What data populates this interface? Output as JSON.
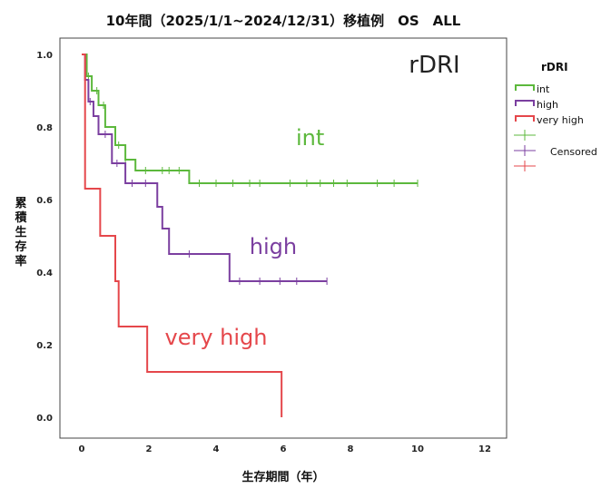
{
  "chart_data": {
    "type": "line",
    "title": "10年間（2025/1/1~2024/12/31）移植例　OS　ALL",
    "xlabel": "生存期間（年）",
    "ylabel": "累積生存率",
    "xlim": [
      0,
      12
    ],
    "ylim": [
      0,
      1.0
    ],
    "x_ticks": [
      "0",
      "2",
      "4",
      "6",
      "8",
      "10",
      "12"
    ],
    "y_ticks": [
      "0.0",
      "0.2",
      "0.4",
      "0.6",
      "0.8",
      "1.0"
    ],
    "x_tick_values": [
      0,
      2,
      4,
      6,
      8,
      10,
      12
    ],
    "y_tick_values": [
      0,
      0.2,
      0.4,
      0.6,
      0.8,
      1.0
    ],
    "grid": false,
    "legend": {
      "title": "rDRI",
      "placement": "top-right outside",
      "entries": [
        "int",
        "high",
        "very high"
      ],
      "censored_label": "Censored"
    },
    "series": [
      {
        "name": "int",
        "color": "#5cb83c",
        "steps": [
          [
            0,
            1.0
          ],
          [
            0.15,
            0.94
          ],
          [
            0.3,
            0.9
          ],
          [
            0.5,
            0.86
          ],
          [
            0.7,
            0.8
          ],
          [
            1.0,
            0.75
          ],
          [
            1.3,
            0.71
          ],
          [
            1.6,
            0.68
          ],
          [
            3.2,
            0.645
          ],
          [
            10.0,
            0.645
          ]
        ],
        "censored": [
          0.2,
          0.45,
          0.65,
          1.1,
          1.3,
          1.9,
          2.4,
          2.6,
          2.9,
          3.5,
          4.0,
          4.5,
          5.0,
          5.3,
          6.2,
          6.7,
          7.1,
          7.5,
          7.9,
          8.8,
          9.3,
          10.0
        ]
      },
      {
        "name": "high",
        "color": "#7b3fa0",
        "steps": [
          [
            0,
            1.0
          ],
          [
            0.1,
            0.93
          ],
          [
            0.2,
            0.87
          ],
          [
            0.35,
            0.83
          ],
          [
            0.5,
            0.78
          ],
          [
            0.9,
            0.7
          ],
          [
            1.3,
            0.645
          ],
          [
            2.25,
            0.58
          ],
          [
            2.4,
            0.52
          ],
          [
            2.6,
            0.45
          ],
          [
            4.4,
            0.375
          ],
          [
            7.3,
            0.375
          ]
        ],
        "censored": [
          0.25,
          0.7,
          1.05,
          1.5,
          1.9,
          3.2,
          4.7,
          5.3,
          5.9,
          6.4,
          7.3
        ]
      },
      {
        "name": "very high",
        "color": "#e5474b",
        "steps": [
          [
            0,
            1.0
          ],
          [
            0.1,
            0.63
          ],
          [
            0.55,
            0.5
          ],
          [
            1.0,
            0.375
          ],
          [
            1.1,
            0.25
          ],
          [
            1.95,
            0.125
          ],
          [
            5.95,
            0.0
          ]
        ],
        "censored": []
      }
    ],
    "annotations": [
      {
        "text": "rDRI",
        "x": 10.5,
        "y": 0.95,
        "series": null
      },
      {
        "text": "int",
        "x": 6.8,
        "y": 0.75,
        "series": "int"
      },
      {
        "text": "high",
        "x": 5.7,
        "y": 0.45,
        "series": "high"
      },
      {
        "text": "very high",
        "x": 4.0,
        "y": 0.2,
        "series": "very high"
      }
    ]
  }
}
